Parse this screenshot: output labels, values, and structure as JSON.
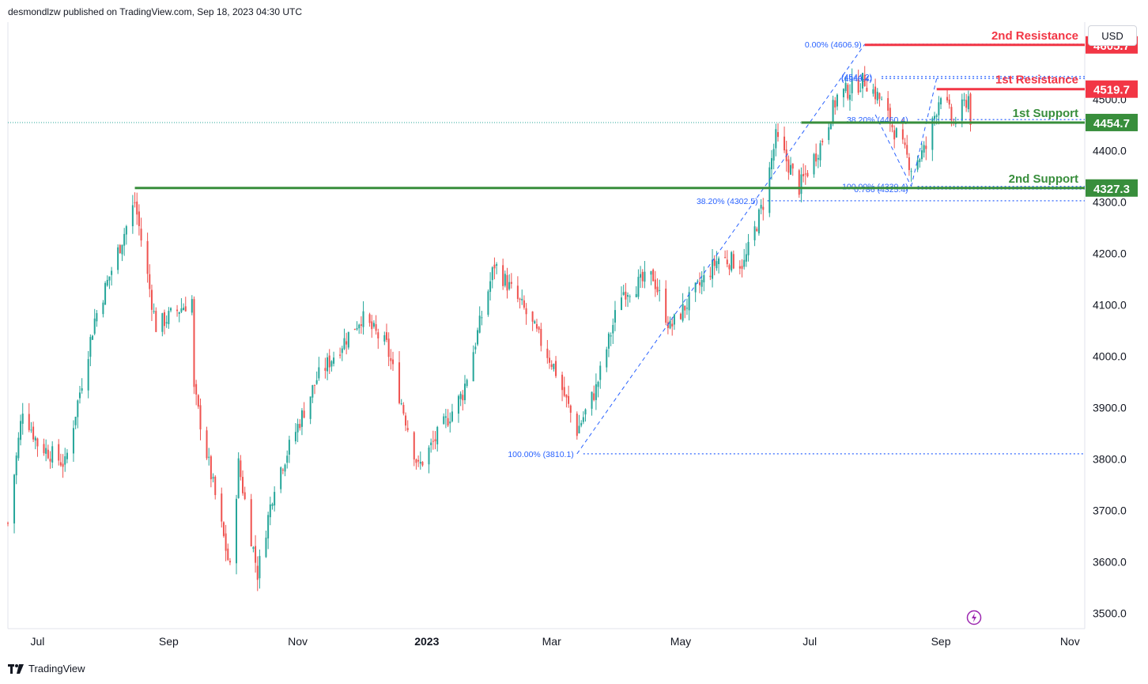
{
  "header": {
    "publisher": "desmondlzw published on TradingView.com, Sep 18, 2023 04:30 UTC"
  },
  "currency_button": "USD",
  "footer": {
    "brand": "TradingView"
  },
  "colors": {
    "up": "#26a69a",
    "down": "#ef5350",
    "resistance": "#f23645",
    "support": "#388e3c",
    "fib": "#2962ff",
    "grid": "#f0f3fa"
  },
  "chart_data": {
    "type": "candlestick",
    "title": "",
    "ylim": [
      3470,
      4650
    ],
    "y_ticks": [
      3500,
      3600,
      3700,
      3800,
      3900,
      4000,
      4100,
      4200,
      4300,
      4400,
      4500
    ],
    "x_tick_labels": [
      {
        "label": "Jul",
        "date": "2022-07-01"
      },
      {
        "label": "Sep",
        "date": "2022-09-01"
      },
      {
        "label": "Nov",
        "date": "2022-11-01"
      },
      {
        "label": "2023",
        "date": "2023-01-01",
        "bold": true
      },
      {
        "label": "Mar",
        "date": "2023-03-01"
      },
      {
        "label": "May",
        "date": "2023-05-01"
      },
      {
        "label": "Jul",
        "date": "2023-07-01"
      },
      {
        "label": "Sep",
        "date": "2023-09-01"
      },
      {
        "label": "Nov",
        "date": "2023-11-01"
      }
    ],
    "x_range": [
      "2022-06-17",
      "2023-11-08"
    ],
    "price_path": [
      {
        "date": "2022-06-17",
        "close": 3675
      },
      {
        "date": "2022-06-24",
        "close": 3900
      },
      {
        "date": "2022-07-01",
        "close": 3830
      },
      {
        "date": "2022-07-14",
        "close": 3790
      },
      {
        "date": "2022-07-28",
        "close": 4072
      },
      {
        "date": "2022-08-16",
        "close": 4300
      },
      {
        "date": "2022-08-26",
        "close": 4058
      },
      {
        "date": "2022-09-12",
        "close": 4110
      },
      {
        "date": "2022-09-13",
        "close": 3932
      },
      {
        "date": "2022-09-30",
        "close": 3585
      },
      {
        "date": "2022-10-04",
        "close": 3790
      },
      {
        "date": "2022-10-13",
        "close": 3577
      },
      {
        "date": "2022-10-21",
        "close": 3752
      },
      {
        "date": "2022-11-10",
        "close": 3956
      },
      {
        "date": "2022-12-01",
        "close": 4076
      },
      {
        "date": "2022-12-13",
        "close": 4020
      },
      {
        "date": "2022-12-28",
        "close": 3783
      },
      {
        "date": "2023-01-18",
        "close": 3928
      },
      {
        "date": "2023-02-02",
        "close": 4179
      },
      {
        "date": "2023-02-16",
        "close": 4090
      },
      {
        "date": "2023-03-02",
        "close": 3981
      },
      {
        "date": "2023-03-13",
        "close": 3855
      },
      {
        "date": "2023-03-22",
        "close": 3937
      },
      {
        "date": "2023-04-03",
        "close": 4124
      },
      {
        "date": "2023-04-18",
        "close": 4155
      },
      {
        "date": "2023-04-26",
        "close": 4055
      },
      {
        "date": "2023-05-19",
        "close": 4191
      },
      {
        "date": "2023-05-31",
        "close": 4180
      },
      {
        "date": "2023-06-09",
        "close": 4298
      },
      {
        "date": "2023-06-15",
        "close": 4425
      },
      {
        "date": "2023-06-26",
        "close": 4328
      },
      {
        "date": "2023-07-06",
        "close": 4411
      },
      {
        "date": "2023-07-14",
        "close": 4505
      },
      {
        "date": "2023-07-27",
        "close": 4537
      },
      {
        "date": "2023-08-03",
        "close": 4501
      },
      {
        "date": "2023-08-18",
        "close": 4369
      },
      {
        "date": "2023-08-25",
        "close": 4405
      },
      {
        "date": "2023-09-01",
        "close": 4515
      },
      {
        "date": "2023-09-07",
        "close": 4451
      },
      {
        "date": "2023-09-14",
        "close": 4505
      },
      {
        "date": "2023-09-15",
        "close": 4450
      }
    ],
    "levels": [
      {
        "label": "2nd Resistance",
        "value": 4605.7,
        "kind": "resistance",
        "start": "2023-07-27"
      },
      {
        "label": "1st Resistance",
        "value": 4519.7,
        "kind": "resistance",
        "start": "2023-08-30"
      },
      {
        "label": "1st Support",
        "value": 4454.7,
        "kind": "support",
        "start": "2023-06-27"
      },
      {
        "label": "2nd Support",
        "value": 4327.3,
        "kind": "support",
        "start": "2022-08-16"
      }
    ],
    "fib_labels": [
      {
        "text": "0.00% (4606.9)",
        "value": 4606.9,
        "end": "2023-07-27"
      },
      {
        "text": "38.20% (4302.5)",
        "value": 4302.5,
        "end": "2023-06-08"
      },
      {
        "text": "100.00% (3810.1)",
        "value": 3810.1,
        "end": "2023-03-13"
      },
      {
        "text": "38.20% (4460.4)",
        "value": 4460.4,
        "end": "2023-08-18"
      },
      {
        "text": "0.786 (4325.4)",
        "value": 4325.4,
        "end": "2023-08-18"
      },
      {
        "text": "100.00% (4330.4)",
        "value": 4330.4,
        "end": "2023-08-18"
      },
      {
        "text": "(4540.4)",
        "value": 4540.4,
        "end": "2023-08-01"
      },
      {
        "text": "(4544.2)",
        "value": 4544.2,
        "end": "2023-08-01"
      }
    ],
    "trend_segments": [
      {
        "from": {
          "date": "2023-03-13",
          "value": 3810.1
        },
        "to": {
          "date": "2023-07-27",
          "value": 4606.9
        }
      },
      {
        "from": {
          "date": "2023-08-01",
          "value": 4470
        },
        "to": {
          "date": "2023-08-18",
          "value": 4330.4
        }
      },
      {
        "from": {
          "date": "2023-08-18",
          "value": 4330.4
        },
        "to": {
          "date": "2023-08-30",
          "value": 4540.4
        }
      }
    ],
    "last_price": 4454.7
  }
}
